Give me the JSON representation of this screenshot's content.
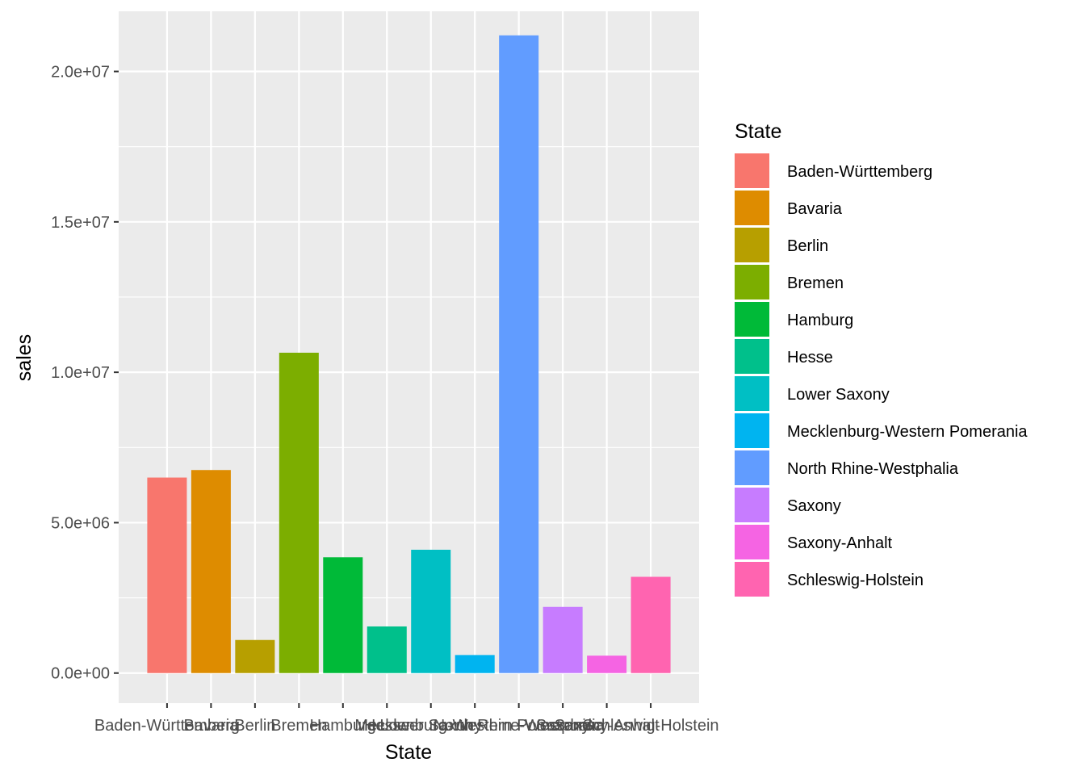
{
  "chart_data": {
    "type": "bar",
    "xlabel": "State",
    "ylabel": "sales",
    "ylim": [
      -1000000,
      22000000
    ],
    "y_ticks": [
      0,
      5000000,
      10000000,
      15000000,
      20000000
    ],
    "y_tick_labels": [
      "0.0e+00",
      "5.0e+06",
      "1.0e+07",
      "1.5e+07",
      "2.0e+07"
    ],
    "grid": true,
    "legend_position": "right",
    "legend_title": "State",
    "categories": [
      "Baden-Württemberg",
      "Bavaria",
      "Berlin",
      "Bremen",
      "Hamburg",
      "Hesse",
      "Lower Saxony",
      "Mecklenburg-Western Pomerania",
      "North Rhine-Westphalia",
      "Saxony",
      "Saxony-Anhalt",
      "Schleswig-Holstein"
    ],
    "values": [
      6500000,
      6750000,
      1100000,
      10650000,
      3850000,
      1550000,
      4100000,
      600000,
      21200000,
      2200000,
      580000,
      3200000
    ],
    "colors": [
      "#F8766D",
      "#DE8C00",
      "#B79F00",
      "#7CAE00",
      "#00BA38",
      "#00C08B",
      "#00BFC4",
      "#00B4F0",
      "#619CFF",
      "#C77CFF",
      "#F564E3",
      "#FF64B0"
    ]
  }
}
